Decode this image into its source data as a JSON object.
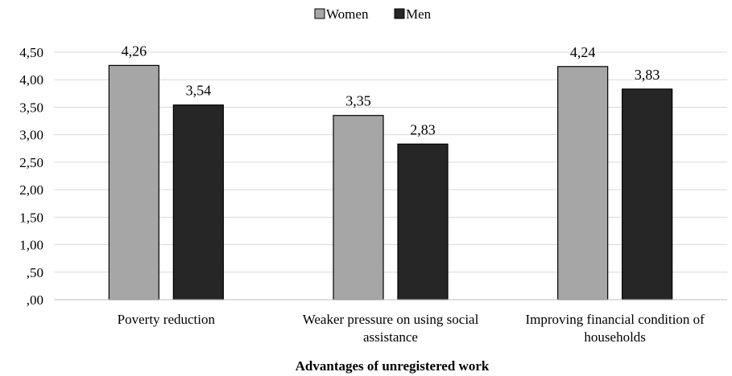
{
  "chart_data": {
    "type": "bar",
    "title": "",
    "xlabel": "Advantages of unregistered work",
    "ylabel": "",
    "ylim": [
      0,
      4.5
    ],
    "y_ticks": [
      ",00",
      ",50",
      "1,00",
      "1,50",
      "2,00",
      "2,50",
      "3,00",
      "3,50",
      "4,00",
      "4,50"
    ],
    "y_tick_values": [
      0,
      0.5,
      1.0,
      1.5,
      2.0,
      2.5,
      3.0,
      3.5,
      4.0,
      4.5
    ],
    "grid": true,
    "legend_position": "top-center",
    "categories": [
      [
        "Poverty reduction"
      ],
      [
        "Weaker pressure on using social",
        "assistance"
      ],
      [
        "Improving financial condition of",
        "households"
      ]
    ],
    "series": [
      {
        "name": "Women",
        "color": "#a6a6a6",
        "values": [
          4.26,
          3.35,
          4.24
        ],
        "labels": [
          "4,26",
          "3,35",
          "4,24"
        ]
      },
      {
        "name": "Men",
        "color": "#262626",
        "values": [
          3.54,
          2.83,
          3.83
        ],
        "labels": [
          "3,54",
          "2,83",
          "3,83"
        ]
      }
    ]
  }
}
